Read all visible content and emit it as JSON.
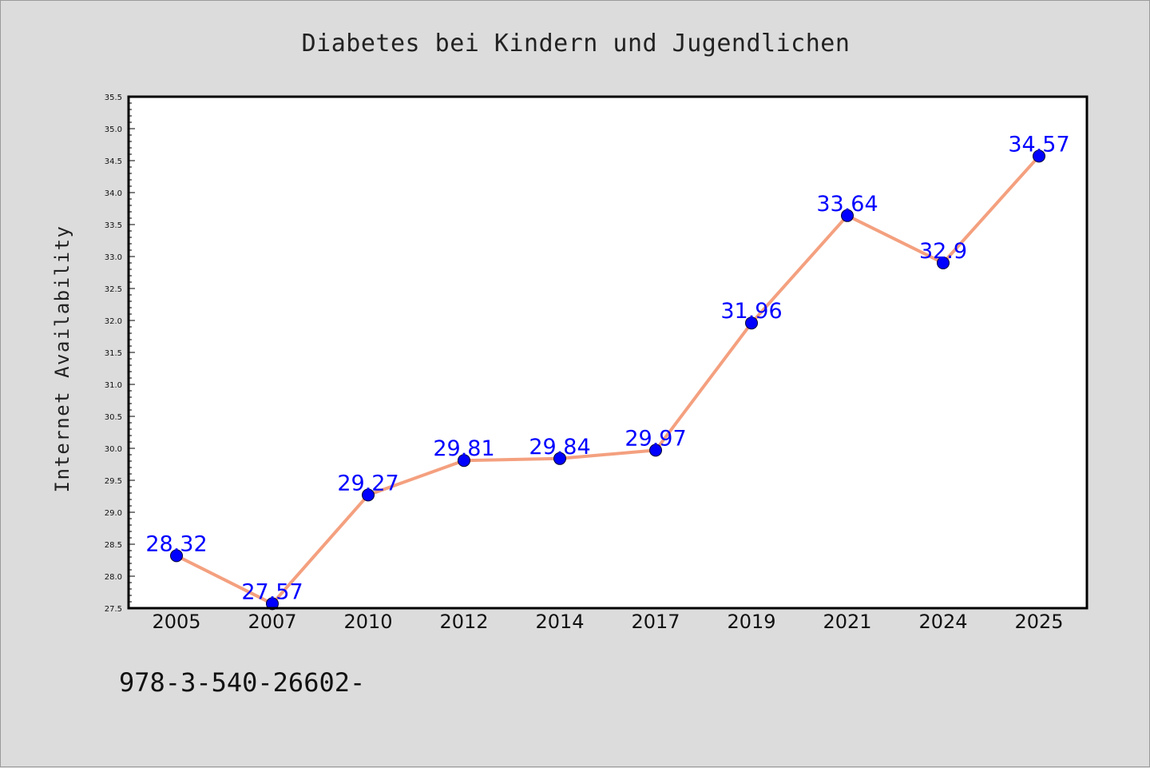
{
  "chart_data": {
    "type": "line",
    "title": "Diabetes bei Kindern und Jugendlichen",
    "xlabel": "",
    "ylabel": "Internet Availability",
    "categories": [
      "2005",
      "2007",
      "2010",
      "2012",
      "2014",
      "2017",
      "2019",
      "2021",
      "2024",
      "2025"
    ],
    "series": [
      {
        "values": [
          28.32,
          27.57,
          29.27,
          29.81,
          29.84,
          29.97,
          31.96,
          33.64,
          32.9,
          34.57
        ],
        "labels": [
          "28.32",
          "27.57",
          "29.27",
          "29.81",
          "29.84",
          "29.97",
          "31.96",
          "33.64",
          "32.9",
          "34.57"
        ],
        "line_color": "#f4a07f",
        "marker_color": "#0000ff"
      }
    ],
    "ylim": [
      27.5,
      35.5
    ],
    "yticks": [
      "27.5",
      "28.0",
      "28.5",
      "29.0",
      "29.5",
      "30.0",
      "30.5",
      "31.0",
      "31.5",
      "32.0",
      "32.5",
      "33.0",
      "33.5",
      "34.0",
      "34.5",
      "35.0",
      "35.5"
    ],
    "grid": false,
    "legend": "none",
    "data_label_color": "#0000ff"
  },
  "footnote": "978-3-540-26602-"
}
